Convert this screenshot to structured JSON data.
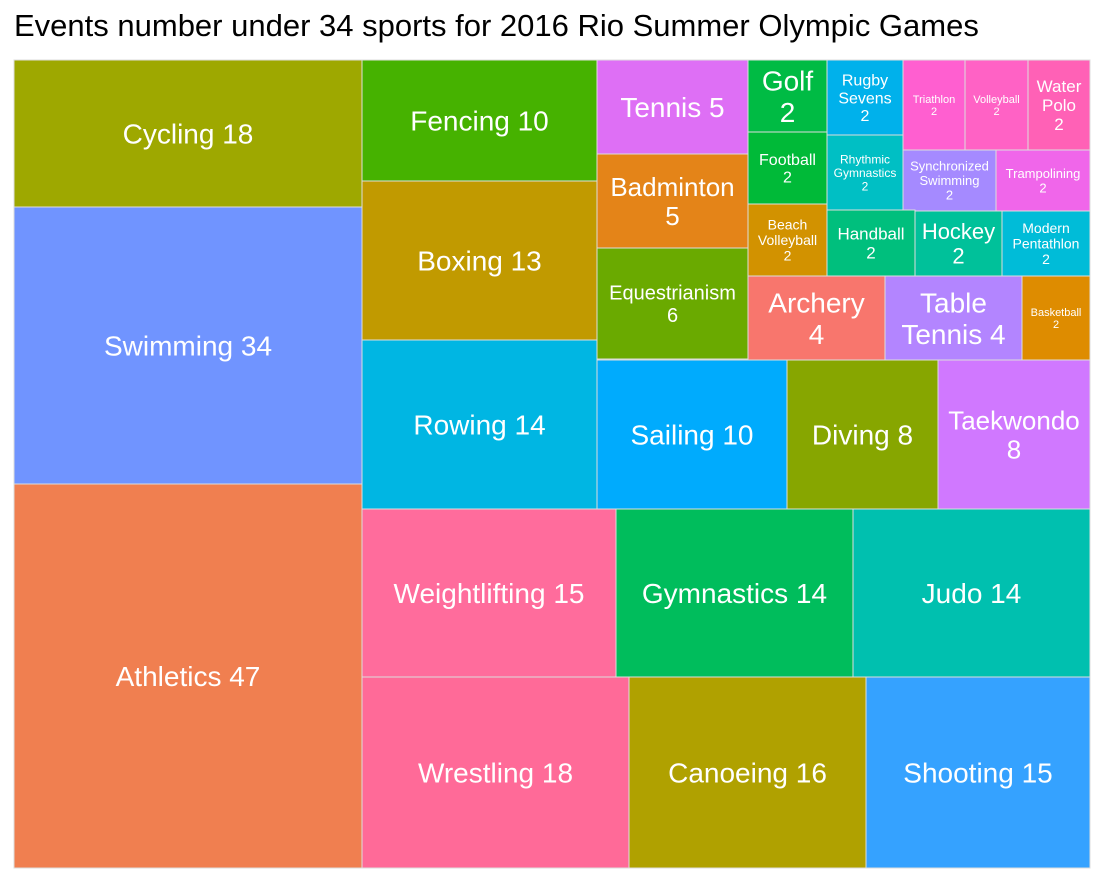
{
  "chart_data": {
    "type": "treemap",
    "title": "Events number under 34 sports for 2016 Rio Summer Olympic Games",
    "label_color": "#ffffff",
    "border_color": "#dddddd",
    "tiles": [
      {
        "label": "Athletics 47",
        "sport": "Athletics",
        "value": 47,
        "color": "#F07F50"
      },
      {
        "label": "Swimming 34",
        "sport": "Swimming",
        "value": 34,
        "color": "#7094FF"
      },
      {
        "label": "Cycling 18",
        "sport": "Cycling",
        "value": 18,
        "color": "#9EA800"
      },
      {
        "label": "Fencing 10",
        "sport": "Fencing",
        "value": 10,
        "color": "#46B200"
      },
      {
        "label": "Boxing 13",
        "sport": "Boxing",
        "value": 13,
        "color": "#C19A00"
      },
      {
        "label": "Rowing 14",
        "sport": "Rowing",
        "value": 14,
        "color": "#00B6E3"
      },
      {
        "label": "Tennis 5",
        "sport": "Tennis",
        "value": 5,
        "color": "#DE6FF5"
      },
      {
        "label": "Badminton 5",
        "sport": "Badminton",
        "value": 5,
        "color": "#E48418"
      },
      {
        "label": "Equestrianism 6",
        "sport": "Equestrianism",
        "value": 6,
        "color": "#6AAA00"
      },
      {
        "label": "Golf 2",
        "sport": "Golf",
        "value": 2,
        "color": "#00BB44"
      },
      {
        "label": "Rugby Sevens 2",
        "sport": "Rugby Sevens",
        "value": 2,
        "color": "#00B1EB"
      },
      {
        "label": "Triathlon 2",
        "sport": "Triathlon",
        "value": 2,
        "color": "#FF5FD0"
      },
      {
        "label": "Volleyball 2",
        "sport": "Volleyball",
        "value": 2,
        "color": "#FF62C5"
      },
      {
        "label": "Water Polo 2",
        "sport": "Water Polo",
        "value": 2,
        "color": "#FF61B6"
      },
      {
        "label": "Football 2",
        "sport": "Football",
        "value": 2,
        "color": "#00BA38"
      },
      {
        "label": "Rhythmic Gymnastics 2",
        "sport": "Rhythmic Gymnastics",
        "value": 2,
        "color": "#00BFC4"
      },
      {
        "label": "Synchronized Swimming 2",
        "sport": "Synchronized Swimming",
        "value": 2,
        "color": "#A58AFF"
      },
      {
        "label": "Trampolining 2",
        "sport": "Trampolining",
        "value": 2,
        "color": "#F066EA"
      },
      {
        "label": "Beach Volleyball 2",
        "sport": "Beach Volleyball",
        "value": 2,
        "color": "#D29200"
      },
      {
        "label": "Handball 2",
        "sport": "Handball",
        "value": 2,
        "color": "#00BF7D"
      },
      {
        "label": "Hockey 2",
        "sport": "Hockey",
        "value": 2,
        "color": "#00C19A"
      },
      {
        "label": "Modern Pentathlon 2",
        "sport": "Modern Pentathlon",
        "value": 2,
        "color": "#00BCD8"
      },
      {
        "label": "Archery 4",
        "sport": "Archery",
        "value": 4,
        "color": "#F8766D"
      },
      {
        "label": "Table Tennis 4",
        "sport": "Table Tennis",
        "value": 4,
        "color": "#B385FF"
      },
      {
        "label": "Basketball 2",
        "sport": "Basketball",
        "value": 2,
        "color": "#DE8C00"
      },
      {
        "label": "Sailing 10",
        "sport": "Sailing",
        "value": 10,
        "color": "#00ABFD"
      },
      {
        "label": "Diving 8",
        "sport": "Diving",
        "value": 8,
        "color": "#87A600"
      },
      {
        "label": "Taekwondo 8",
        "sport": "Taekwondo",
        "value": 8,
        "color": "#D078FF"
      },
      {
        "label": "Weightlifting 15",
        "sport": "Weightlifting",
        "value": 15,
        "color": "#FF6C9C"
      },
      {
        "label": "Gymnastics 14",
        "sport": "Gymnastics",
        "value": 14,
        "color": "#00BD5C"
      },
      {
        "label": "Judo 14",
        "sport": "Judo",
        "value": 14,
        "color": "#00C0AF"
      },
      {
        "label": "Wrestling 18",
        "sport": "Wrestling",
        "value": 18,
        "color": "#FF6A98"
      },
      {
        "label": "Canoeing 16",
        "sport": "Canoeing",
        "value": 16,
        "color": "#B0A100"
      },
      {
        "label": "Shooting 15",
        "sport": "Shooting",
        "value": 15,
        "color": "#35A2FF"
      }
    ]
  }
}
